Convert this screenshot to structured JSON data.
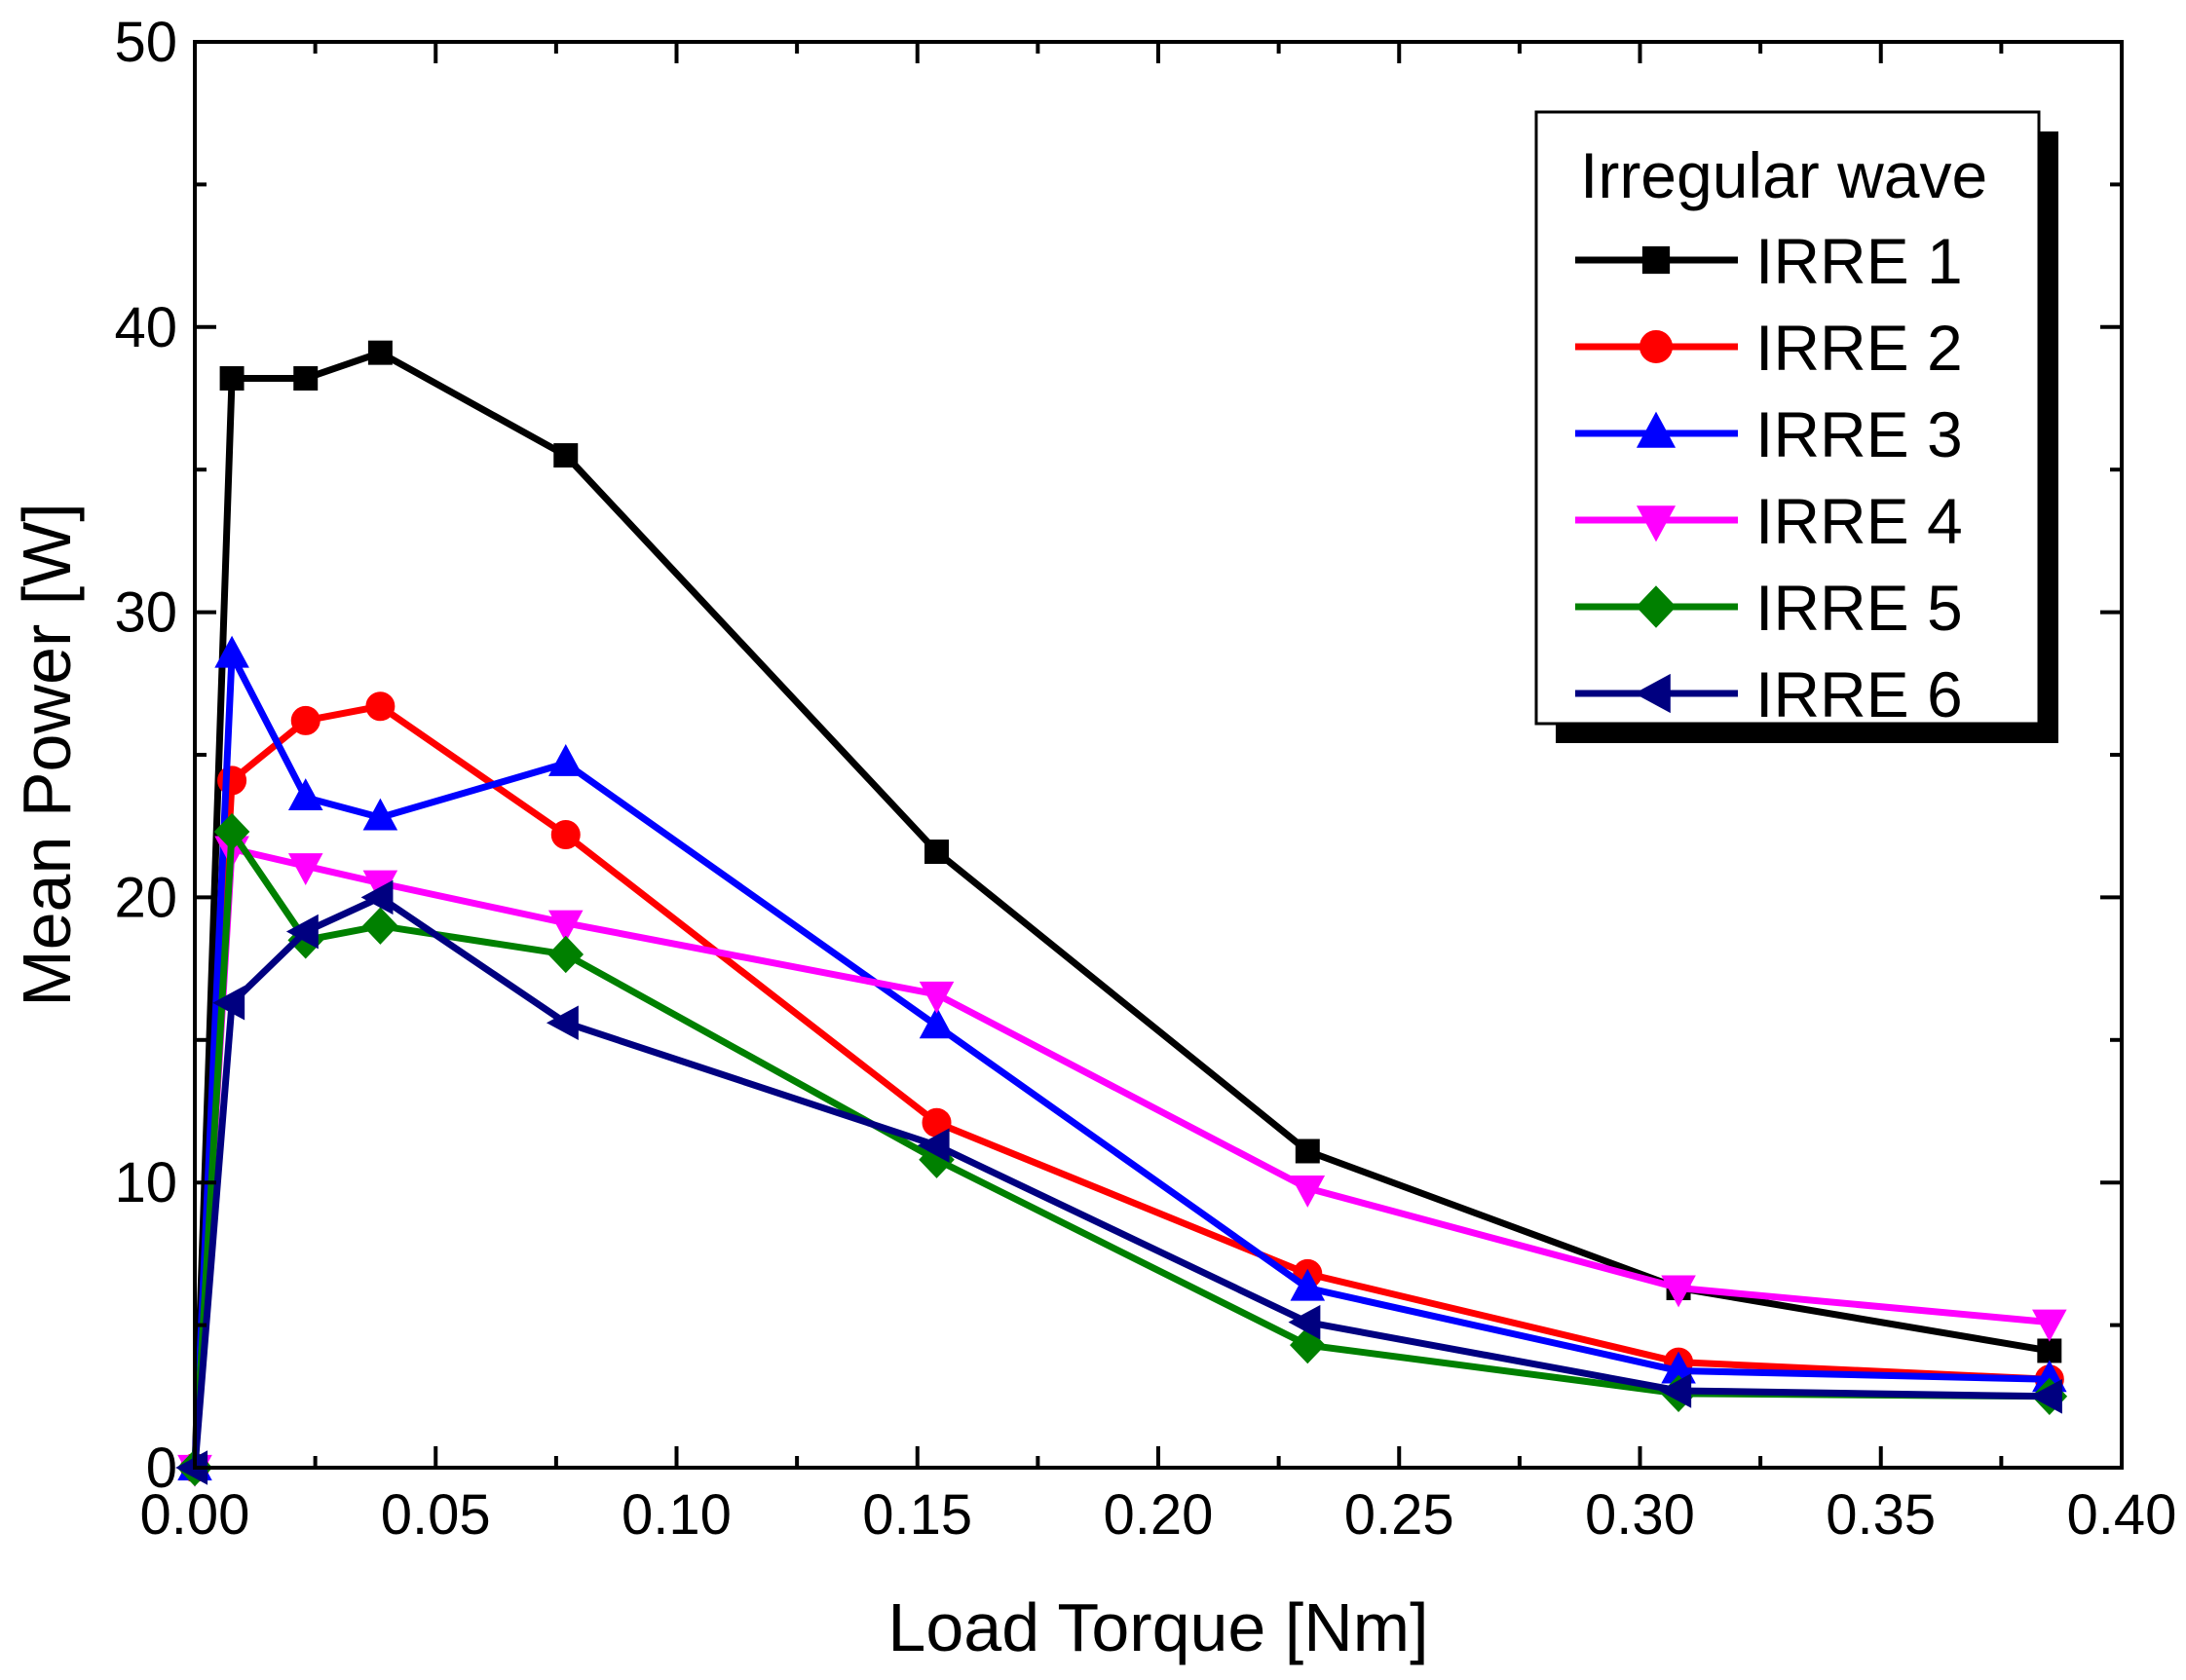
{
  "chart_data": {
    "type": "line",
    "xlabel": "Load Torque [Nm]",
    "ylabel": "Mean Power [W]",
    "xlim": [
      0.0,
      0.4
    ],
    "ylim": [
      0,
      50
    ],
    "x_ticks": [
      "0.00",
      "0.05",
      "0.10",
      "0.15",
      "0.20",
      "0.25",
      "0.30",
      "0.35",
      "0.40"
    ],
    "y_ticks": [
      "0",
      "10",
      "20",
      "30",
      "40",
      "50"
    ],
    "grid": false,
    "legend": {
      "title": "Irregular wave",
      "placement": "top-right"
    },
    "x": [
      0.0,
      0.0077,
      0.023,
      0.0385,
      0.077,
      0.154,
      0.231,
      0.308,
      0.385
    ],
    "series": [
      {
        "name": "IRRE 1",
        "color": "#000000",
        "marker": "square",
        "values": [
          0,
          38.2,
          38.2,
          39.1,
          35.5,
          21.6,
          11.1,
          6.3,
          4.1
        ]
      },
      {
        "name": "IRRE 2",
        "color": "#ff0000",
        "marker": "circle",
        "values": [
          0,
          24.1,
          26.2,
          26.7,
          22.2,
          12.1,
          6.8,
          3.7,
          3.1
        ]
      },
      {
        "name": "IRRE 3",
        "color": "#0000ff",
        "marker": "triangle-up",
        "values": [
          0,
          28.5,
          23.5,
          22.8,
          24.7,
          15.5,
          6.3,
          3.4,
          3.1
        ]
      },
      {
        "name": "IRRE 4",
        "color": "#ff00ff",
        "marker": "triangle-down",
        "values": [
          0,
          21.7,
          21.1,
          20.5,
          19.1,
          16.6,
          9.8,
          6.3,
          5.1
        ]
      },
      {
        "name": "IRRE 5",
        "color": "#008000",
        "marker": "diamond",
        "values": [
          0,
          22.3,
          18.5,
          19.0,
          18.0,
          10.8,
          4.3,
          2.6,
          2.5
        ]
      },
      {
        "name": "IRRE 6",
        "color": "#000080",
        "marker": "triangle-left",
        "values": [
          0,
          16.3,
          18.8,
          20.0,
          15.6,
          11.3,
          5.1,
          2.7,
          2.5
        ]
      }
    ]
  }
}
